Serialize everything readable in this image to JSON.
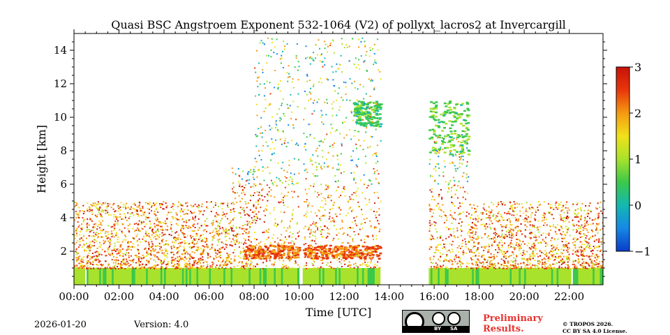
{
  "chart_data": {
    "type": "heatmap",
    "title": "Quasi BSC Angstroem Exponent 532-1064 (V2) of pollyxt_lacros2 at Invercargill",
    "xlabel": "Time [UTC]",
    "ylabel": "Height [km]",
    "xlim_hours": [
      0,
      23.5
    ],
    "ylim_km": [
      0,
      15
    ],
    "x_ticks": [
      0,
      2,
      4,
      6,
      8,
      10,
      12,
      14,
      16,
      18,
      20,
      22
    ],
    "x_tick_labels": [
      "00:00",
      "02:00",
      "04:00",
      "06:00",
      "08:00",
      "10:00",
      "12:00",
      "14:00",
      "16:00",
      "18:00",
      "20:00",
      "22:00"
    ],
    "y_ticks": [
      2,
      4,
      6,
      8,
      10,
      12,
      14
    ],
    "y_tick_labels": [
      "2",
      "4",
      "6",
      "8",
      "10",
      "12",
      "14"
    ],
    "colorbar": {
      "min": -1,
      "max": 3,
      "ticks": [
        -1,
        0,
        1,
        2,
        3
      ],
      "tick_labels": [
        "−1",
        "0",
        "1",
        "2",
        "3"
      ],
      "colormap": [
        "#0a3cc8",
        "#1688e6",
        "#14b8b0",
        "#3cc84a",
        "#a8e22c",
        "#f0e11a",
        "#f59a12",
        "#e8360c",
        "#c81208"
      ]
    },
    "no_data_gaps_hours": [
      [
        0.45,
        0.52
      ],
      [
        5.95,
        6.0
      ],
      [
        10.0,
        10.15
      ],
      [
        13.6,
        15.75
      ],
      [
        18.0,
        18.05
      ],
      [
        22.0,
        22.1
      ]
    ],
    "features": [
      {
        "name": "near-surface layer",
        "height_km": [
          0,
          1
        ],
        "value": 0.8
      },
      {
        "name": "aerosol layer",
        "time_h": [
          7.5,
          13.6
        ],
        "height_km": [
          1.6,
          2.4
        ],
        "value": 2.3
      },
      {
        "name": "scattered aerosol",
        "height_km": [
          1,
          5
        ],
        "value": 2.0
      },
      {
        "name": "cirrus cloud",
        "time_h": [
          12.4,
          13.6
        ],
        "height_km": [
          9.5,
          11
        ],
        "value": 0.5
      },
      {
        "name": "cirrus cloud",
        "time_h": [
          15.75,
          17.5
        ],
        "height_km": [
          7.8,
          11
        ],
        "value": 0.6
      }
    ]
  },
  "footer": {
    "date": "2026-01-20",
    "version": "Version: 4.0",
    "license_badge": {
      "by": "BY",
      "sa": "SA"
    },
    "preliminary_line1": "Preliminary",
    "preliminary_line2": "Results.",
    "copyright_line1": "© TROPOS 2026.",
    "copyright_line2": "CC BY SA 4.0 License."
  }
}
